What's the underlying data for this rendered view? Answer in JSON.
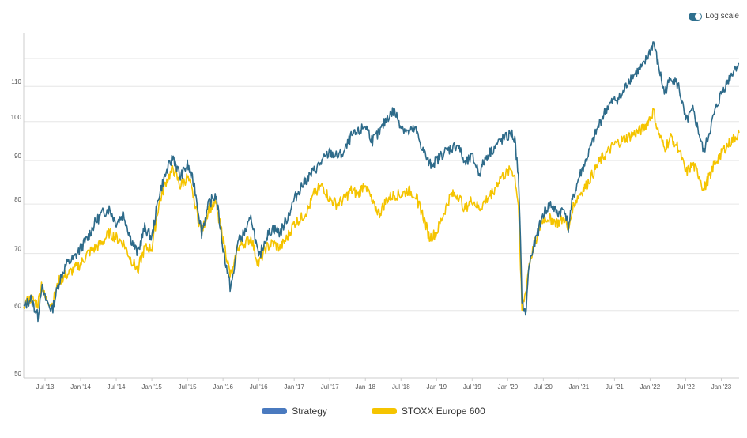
{
  "controls": {
    "log_scale_label": "Log scale",
    "log_scale_on": true
  },
  "colors": {
    "strategy": "#2e6b8a",
    "benchmark": "#f5c400",
    "legend_strategy": "#4a7abf",
    "legend_benchmark": "#f5c400",
    "grid": "#e6e6e6",
    "axis": "#cccccc"
  },
  "chart_data": {
    "type": "line",
    "title": "",
    "xlabel": "",
    "ylabel": "",
    "log_scale": true,
    "ylim": [
      50,
      127
    ],
    "x_range": [
      2013.2,
      2023.25
    ],
    "y_ticks": [
      50,
      60,
      70,
      80,
      90,
      100,
      110
    ],
    "x_ticks": [
      {
        "label": "Jul '13",
        "t": 2013.5
      },
      {
        "label": "Jan '14",
        "t": 2014.0
      },
      {
        "label": "Jul '14",
        "t": 2014.5
      },
      {
        "label": "Jan '15",
        "t": 2015.0
      },
      {
        "label": "Jul '15",
        "t": 2015.5
      },
      {
        "label": "Jan '16",
        "t": 2016.0
      },
      {
        "label": "Jul '16",
        "t": 2016.5
      },
      {
        "label": "Jan '17",
        "t": 2017.0
      },
      {
        "label": "Jul '17",
        "t": 2017.5
      },
      {
        "label": "Jan '18",
        "t": 2018.0
      },
      {
        "label": "Jul '18",
        "t": 2018.5
      },
      {
        "label": "Jan '19",
        "t": 2019.0
      },
      {
        "label": "Jul '19",
        "t": 2019.5
      },
      {
        "label": "Jan '20",
        "t": 2020.0
      },
      {
        "label": "Jul '20",
        "t": 2020.5
      },
      {
        "label": "Jan '21",
        "t": 2021.0
      },
      {
        "label": "Jul '21",
        "t": 2021.5
      },
      {
        "label": "Jan '22",
        "t": 2022.0
      },
      {
        "label": "Jul '22",
        "t": 2022.5
      },
      {
        "label": "Jan '23",
        "t": 2023.0
      }
    ],
    "series": [
      {
        "name": "Strategy",
        "points": [
          [
            2013.2,
            60.5
          ],
          [
            2013.3,
            62
          ],
          [
            2013.4,
            59
          ],
          [
            2013.45,
            64
          ],
          [
            2013.5,
            62
          ],
          [
            2013.6,
            60
          ],
          [
            2013.7,
            65
          ],
          [
            2013.8,
            68
          ],
          [
            2013.9,
            69
          ],
          [
            2014.0,
            71
          ],
          [
            2014.1,
            73
          ],
          [
            2014.2,
            76
          ],
          [
            2014.3,
            78
          ],
          [
            2014.4,
            79
          ],
          [
            2014.5,
            76
          ],
          [
            2014.6,
            78
          ],
          [
            2014.7,
            73
          ],
          [
            2014.8,
            70
          ],
          [
            2014.9,
            75
          ],
          [
            2015.0,
            73
          ],
          [
            2015.1,
            82
          ],
          [
            2015.2,
            87
          ],
          [
            2015.3,
            91
          ],
          [
            2015.4,
            86
          ],
          [
            2015.5,
            89
          ],
          [
            2015.6,
            84
          ],
          [
            2015.65,
            79
          ],
          [
            2015.7,
            74
          ],
          [
            2015.8,
            80
          ],
          [
            2015.9,
            82
          ],
          [
            2016.0,
            71
          ],
          [
            2016.1,
            64
          ],
          [
            2016.15,
            66
          ],
          [
            2016.2,
            72
          ],
          [
            2016.3,
            74
          ],
          [
            2016.4,
            77
          ],
          [
            2016.45,
            73
          ],
          [
            2016.5,
            69
          ],
          [
            2016.6,
            73
          ],
          [
            2016.7,
            75
          ],
          [
            2016.8,
            74
          ],
          [
            2016.9,
            77
          ],
          [
            2017.0,
            81
          ],
          [
            2017.1,
            84
          ],
          [
            2017.2,
            86
          ],
          [
            2017.3,
            88
          ],
          [
            2017.4,
            90
          ],
          [
            2017.5,
            92
          ],
          [
            2017.6,
            91
          ],
          [
            2017.7,
            92
          ],
          [
            2017.8,
            96
          ],
          [
            2017.9,
            97
          ],
          [
            2018.0,
            99
          ],
          [
            2018.1,
            95
          ],
          [
            2018.2,
            97
          ],
          [
            2018.3,
            101
          ],
          [
            2018.4,
            103
          ],
          [
            2018.5,
            99
          ],
          [
            2018.6,
            97
          ],
          [
            2018.7,
            98
          ],
          [
            2018.8,
            93
          ],
          [
            2018.9,
            89
          ],
          [
            2019.0,
            90
          ],
          [
            2019.1,
            92
          ],
          [
            2019.2,
            93
          ],
          [
            2019.3,
            94
          ],
          [
            2019.4,
            89
          ],
          [
            2019.5,
            91
          ],
          [
            2019.6,
            87
          ],
          [
            2019.7,
            91
          ],
          [
            2019.8,
            93
          ],
          [
            2019.9,
            95
          ],
          [
            2020.0,
            96
          ],
          [
            2020.05,
            97
          ],
          [
            2020.1,
            95
          ],
          [
            2020.15,
            86
          ],
          [
            2020.2,
            62
          ],
          [
            2020.25,
            59
          ],
          [
            2020.3,
            68
          ],
          [
            2020.4,
            73
          ],
          [
            2020.5,
            78
          ],
          [
            2020.6,
            80
          ],
          [
            2020.7,
            78
          ],
          [
            2020.8,
            79
          ],
          [
            2020.85,
            75
          ],
          [
            2020.9,
            80
          ],
          [
            2021.0,
            86
          ],
          [
            2021.1,
            90
          ],
          [
            2021.2,
            95
          ],
          [
            2021.3,
            100
          ],
          [
            2021.4,
            104
          ],
          [
            2021.5,
            106
          ],
          [
            2021.6,
            107
          ],
          [
            2021.7,
            112
          ],
          [
            2021.8,
            114
          ],
          [
            2021.9,
            116
          ],
          [
            2022.0,
            121
          ],
          [
            2022.05,
            124
          ],
          [
            2022.1,
            118
          ],
          [
            2022.2,
            108
          ],
          [
            2022.3,
            113
          ],
          [
            2022.4,
            110
          ],
          [
            2022.5,
            100
          ],
          [
            2022.6,
            103
          ],
          [
            2022.7,
            96
          ],
          [
            2022.75,
            92
          ],
          [
            2022.8,
            95
          ],
          [
            2022.9,
            102
          ],
          [
            2023.0,
            108
          ],
          [
            2023.1,
            112
          ],
          [
            2023.2,
            116
          ],
          [
            2023.25,
            117
          ]
        ]
      },
      {
        "name": "STOXX Europe 600",
        "points": [
          [
            2013.2,
            61
          ],
          [
            2013.3,
            62
          ],
          [
            2013.4,
            61
          ],
          [
            2013.45,
            64.5
          ],
          [
            2013.5,
            62
          ],
          [
            2013.6,
            61
          ],
          [
            2013.7,
            65
          ],
          [
            2013.8,
            66
          ],
          [
            2013.9,
            67
          ],
          [
            2014.0,
            68
          ],
          [
            2014.1,
            70
          ],
          [
            2014.2,
            71
          ],
          [
            2014.3,
            72
          ],
          [
            2014.4,
            74
          ],
          [
            2014.5,
            73
          ],
          [
            2014.6,
            72
          ],
          [
            2014.7,
            69
          ],
          [
            2014.8,
            67
          ],
          [
            2014.9,
            71
          ],
          [
            2015.0,
            71
          ],
          [
            2015.1,
            80
          ],
          [
            2015.2,
            85
          ],
          [
            2015.3,
            88
          ],
          [
            2015.4,
            84
          ],
          [
            2015.5,
            86
          ],
          [
            2015.6,
            81
          ],
          [
            2015.65,
            77
          ],
          [
            2015.7,
            74
          ],
          [
            2015.8,
            79
          ],
          [
            2015.9,
            80
          ],
          [
            2016.0,
            73
          ],
          [
            2016.1,
            66
          ],
          [
            2016.15,
            67
          ],
          [
            2016.2,
            71
          ],
          [
            2016.3,
            72
          ],
          [
            2016.4,
            73
          ],
          [
            2016.45,
            70
          ],
          [
            2016.5,
            68
          ],
          [
            2016.6,
            71
          ],
          [
            2016.7,
            72
          ],
          [
            2016.8,
            71
          ],
          [
            2016.9,
            73
          ],
          [
            2017.0,
            76
          ],
          [
            2017.1,
            77
          ],
          [
            2017.2,
            79
          ],
          [
            2017.3,
            83
          ],
          [
            2017.4,
            84
          ],
          [
            2017.5,
            81
          ],
          [
            2017.6,
            80
          ],
          [
            2017.7,
            81
          ],
          [
            2017.8,
            83
          ],
          [
            2017.9,
            82
          ],
          [
            2018.0,
            85
          ],
          [
            2018.1,
            80
          ],
          [
            2018.2,
            78
          ],
          [
            2018.3,
            81
          ],
          [
            2018.4,
            82
          ],
          [
            2018.5,
            82
          ],
          [
            2018.6,
            83
          ],
          [
            2018.7,
            82
          ],
          [
            2018.8,
            78
          ],
          [
            2018.9,
            73
          ],
          [
            2019.0,
            74
          ],
          [
            2019.1,
            78
          ],
          [
            2019.2,
            82
          ],
          [
            2019.3,
            82
          ],
          [
            2019.4,
            79
          ],
          [
            2019.5,
            81
          ],
          [
            2019.6,
            79
          ],
          [
            2019.7,
            81
          ],
          [
            2019.8,
            83
          ],
          [
            2019.9,
            86
          ],
          [
            2020.0,
            87
          ],
          [
            2020.05,
            88
          ],
          [
            2020.1,
            86
          ],
          [
            2020.15,
            80
          ],
          [
            2020.2,
            60
          ],
          [
            2020.25,
            63
          ],
          [
            2020.3,
            68
          ],
          [
            2020.4,
            73
          ],
          [
            2020.5,
            77
          ],
          [
            2020.6,
            77
          ],
          [
            2020.7,
            76
          ],
          [
            2020.8,
            77
          ],
          [
            2020.85,
            74
          ],
          [
            2020.9,
            79
          ],
          [
            2021.0,
            82
          ],
          [
            2021.1,
            84
          ],
          [
            2021.2,
            87
          ],
          [
            2021.3,
            90
          ],
          [
            2021.4,
            92
          ],
          [
            2021.5,
            94
          ],
          [
            2021.6,
            95
          ],
          [
            2021.7,
            96
          ],
          [
            2021.8,
            97
          ],
          [
            2021.9,
            98
          ],
          [
            2022.0,
            101
          ],
          [
            2022.05,
            103
          ],
          [
            2022.1,
            98
          ],
          [
            2022.2,
            93
          ],
          [
            2022.3,
            96
          ],
          [
            2022.4,
            93
          ],
          [
            2022.5,
            87
          ],
          [
            2022.6,
            89
          ],
          [
            2022.7,
            86
          ],
          [
            2022.75,
            83
          ],
          [
            2022.8,
            85
          ],
          [
            2022.9,
            89
          ],
          [
            2023.0,
            92
          ],
          [
            2023.1,
            94
          ],
          [
            2023.2,
            96
          ],
          [
            2023.25,
            97
          ]
        ]
      }
    ],
    "legend": [
      "Strategy",
      "STOXX Europe 600"
    ],
    "legend_position": "bottom-center"
  }
}
